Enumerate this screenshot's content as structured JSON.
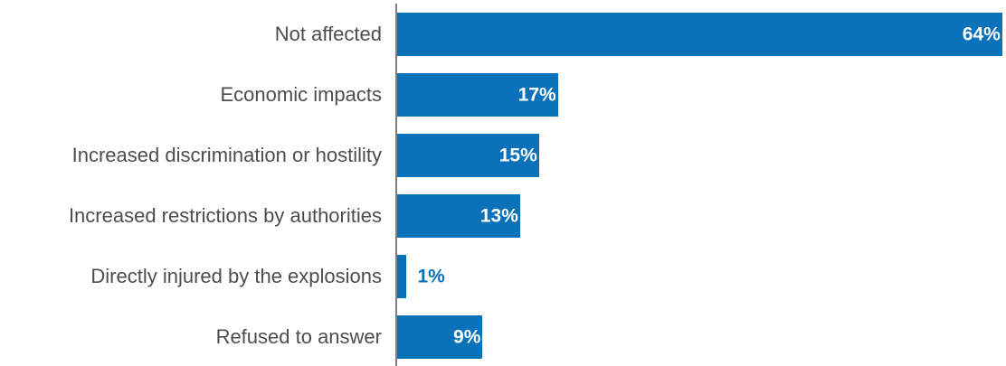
{
  "chart_data": {
    "type": "bar",
    "orientation": "horizontal",
    "categories": [
      "Not affected",
      "Economic impacts",
      "Increased discrimination or hostility",
      "Increased restrictions by authorities",
      "Directly injured by the explosions",
      "Refused to answer"
    ],
    "values": [
      64,
      17,
      15,
      13,
      1,
      9
    ],
    "value_labels": [
      "64%",
      "17%",
      "15%",
      "13%",
      "1%",
      "9%"
    ],
    "bar_color": "#0b72b9",
    "label_color_inside": "#ffffff",
    "label_color_outside": "#0b72b9",
    "grid": false
  }
}
